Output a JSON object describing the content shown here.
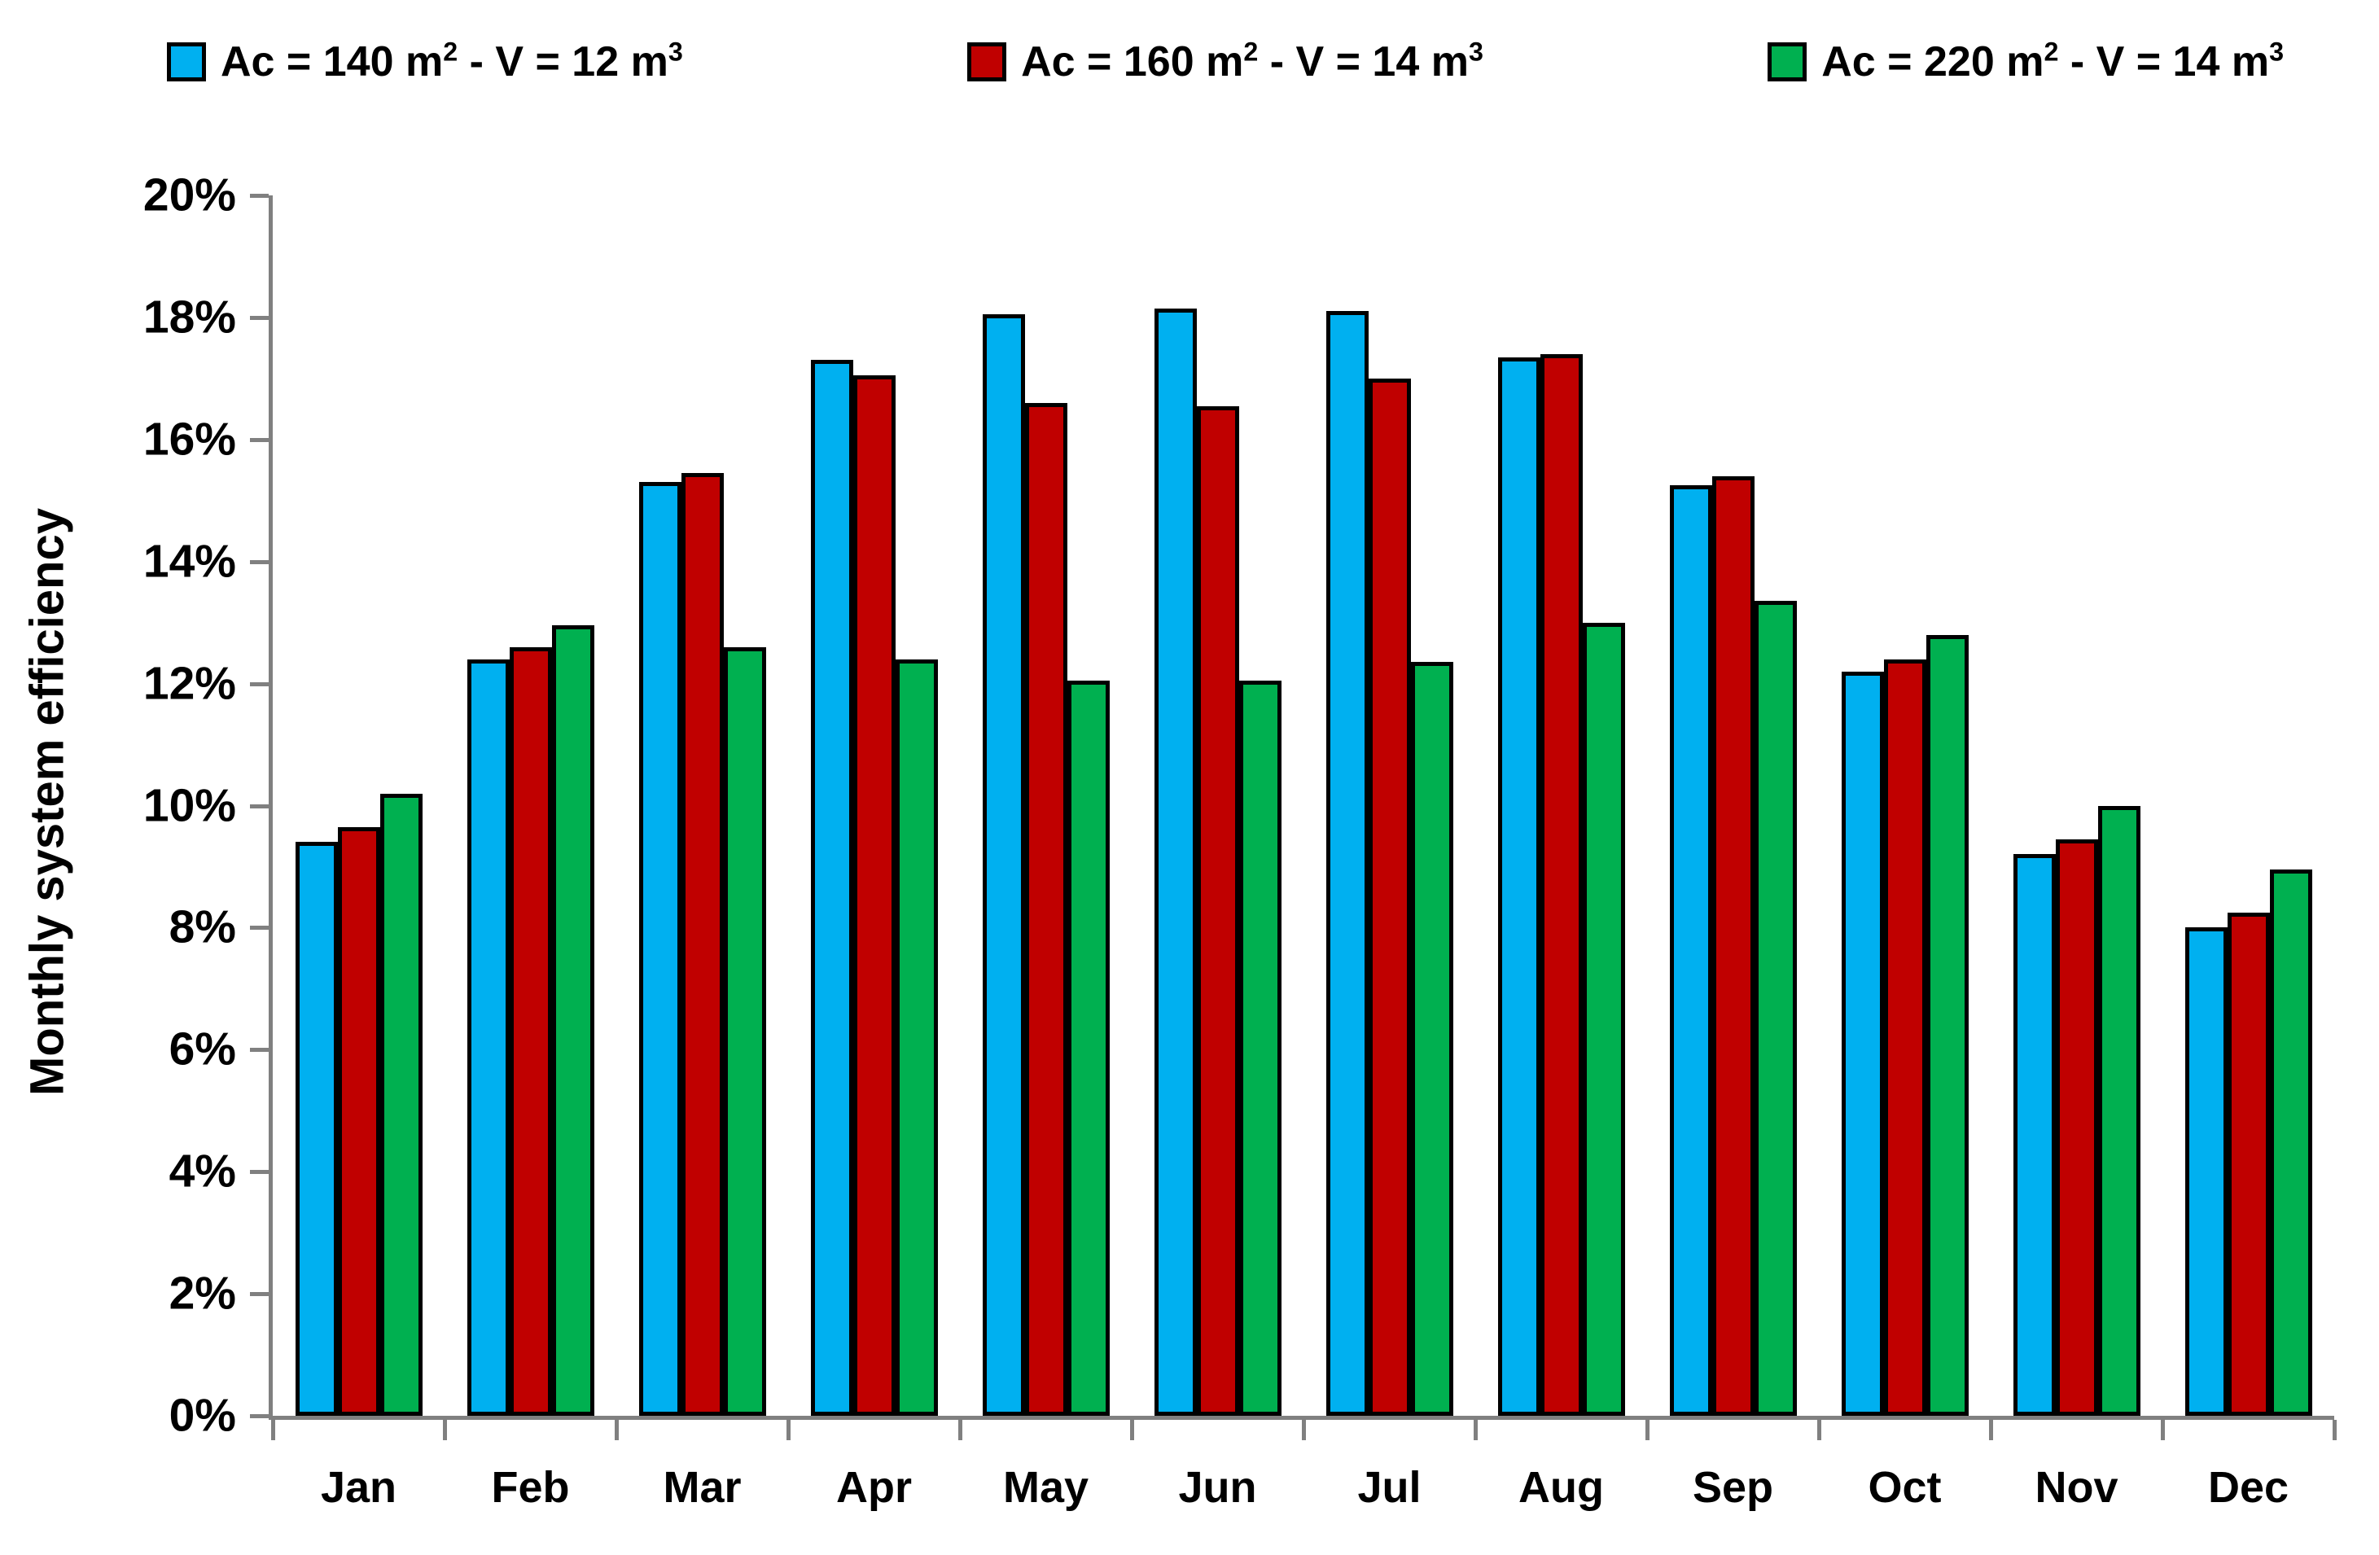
{
  "chart_data": {
    "type": "bar",
    "title": "",
    "xlabel": "",
    "ylabel": "Monthly system efficiency",
    "ylim": [
      0,
      20
    ],
    "ytick_step": 2,
    "ytick_labels": [
      "0%",
      "2%",
      "4%",
      "6%",
      "8%",
      "10%",
      "12%",
      "14%",
      "16%",
      "18%",
      "20%"
    ],
    "grid": false,
    "legend_position": "top",
    "axis_color": "#808080",
    "bar_outline_color": "#000000",
    "categories": [
      "Jan",
      "Feb",
      "Mar",
      "Apr",
      "May",
      "Jun",
      "Jul",
      "Aug",
      "Sep",
      "Oct",
      "Nov",
      "Dec"
    ],
    "series": [
      {
        "name": "Ac = 140 m² - V = 12 m³",
        "color": "#00B0F0",
        "values": [
          9.4,
          12.4,
          15.3,
          17.3,
          18.05,
          18.15,
          18.1,
          17.35,
          15.25,
          12.2,
          9.2,
          8.0
        ]
      },
      {
        "name": "Ac = 160 m² - V = 14 m³",
        "color": "#C00000",
        "values": [
          9.65,
          12.6,
          15.45,
          17.05,
          16.6,
          16.55,
          17.0,
          17.4,
          15.4,
          12.4,
          9.45,
          8.25
        ]
      },
      {
        "name": "Ac = 220 m² - V = 14 m³",
        "color": "#00B050",
        "values": [
          10.2,
          12.95,
          12.6,
          12.4,
          12.05,
          12.05,
          12.35,
          13.0,
          13.35,
          12.8,
          10.0,
          8.95
        ]
      }
    ]
  }
}
